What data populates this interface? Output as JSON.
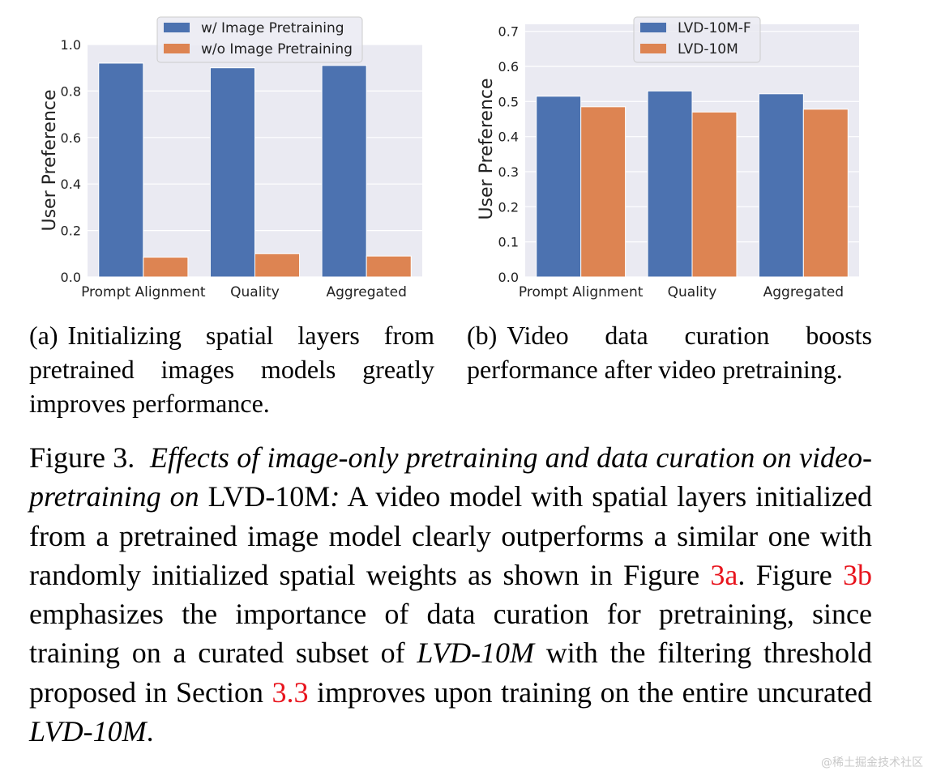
{
  "chart_data": [
    {
      "type": "bar",
      "categories": [
        "Prompt Alignment",
        "Quality",
        "Aggregated"
      ],
      "series": [
        {
          "name": "w/ Image Pretraining",
          "values": [
            0.92,
            0.9,
            0.91
          ],
          "color": "#4c72b0"
        },
        {
          "name": "w/o Image Pretraining",
          "values": [
            0.085,
            0.1,
            0.09
          ],
          "color": "#dd8452"
        }
      ],
      "title": "",
      "xlabel": "",
      "ylabel": "User Preference",
      "ylim": [
        0,
        1.0
      ],
      "yticks": [
        "0.0",
        "0.2",
        "0.4",
        "0.6",
        "0.8",
        "1.0"
      ],
      "grid": true,
      "legend": "top-center"
    },
    {
      "type": "bar",
      "categories": [
        "Prompt Alignment",
        "Quality",
        "Aggregated"
      ],
      "series": [
        {
          "name": "LVD-10M-F",
          "values": [
            0.515,
            0.53,
            0.522
          ],
          "color": "#4c72b0"
        },
        {
          "name": "LVD-10M",
          "values": [
            0.485,
            0.47,
            0.478
          ],
          "color": "#dd8452"
        }
      ],
      "title": "",
      "xlabel": "",
      "ylabel": "User Preference",
      "ylim": [
        0,
        0.72
      ],
      "yticks": [
        "0.0",
        "0.1",
        "0.2",
        "0.3",
        "0.4",
        "0.5",
        "0.6",
        "0.7"
      ],
      "grid": true,
      "legend": "top-center"
    }
  ],
  "subcaptions": {
    "a": {
      "label": "(a)",
      "text": "Initializing spatial layers from pretrained images models greatly improves performance."
    },
    "b": {
      "label": "(b)",
      "text": "Video data curation boosts performance after video pretraining."
    }
  },
  "caption": {
    "prefix": "Figure 3.",
    "italic1": "Effects of image-only pretraining and data curation on video-pretraining on",
    "dataset1": "LVD-10M",
    "colon": ":",
    "text1": " A video model with spatial layers initialized from a pretrained image model clearly outperforms a similar one with randomly initialized spatial weights as shown in Figure ",
    "ref1": "3a",
    "text2": ". Figure ",
    "ref2": "3b",
    "text3": " emphasizes the importance of data curation for pretraining, since training on a curated subset of ",
    "italic2": "LVD-10M",
    "text4": " with the filtering threshold proposed in Section ",
    "ref3": "3.3",
    "text5": " improves upon training on the entire uncurated ",
    "italic3": "LVD-10M",
    "text6": "."
  },
  "watermark": "@稀土掘金技术社区"
}
